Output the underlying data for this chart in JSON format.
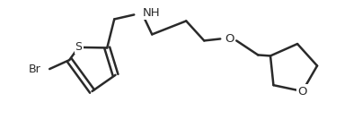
{
  "background_color": "#ffffff",
  "line_color": "#2a2a2a",
  "line_width": 1.8,
  "figsize": [
    4.03,
    1.52
  ],
  "dpi": 100,
  "xlim": [
    0,
    403
  ],
  "ylim": [
    0,
    152
  ]
}
